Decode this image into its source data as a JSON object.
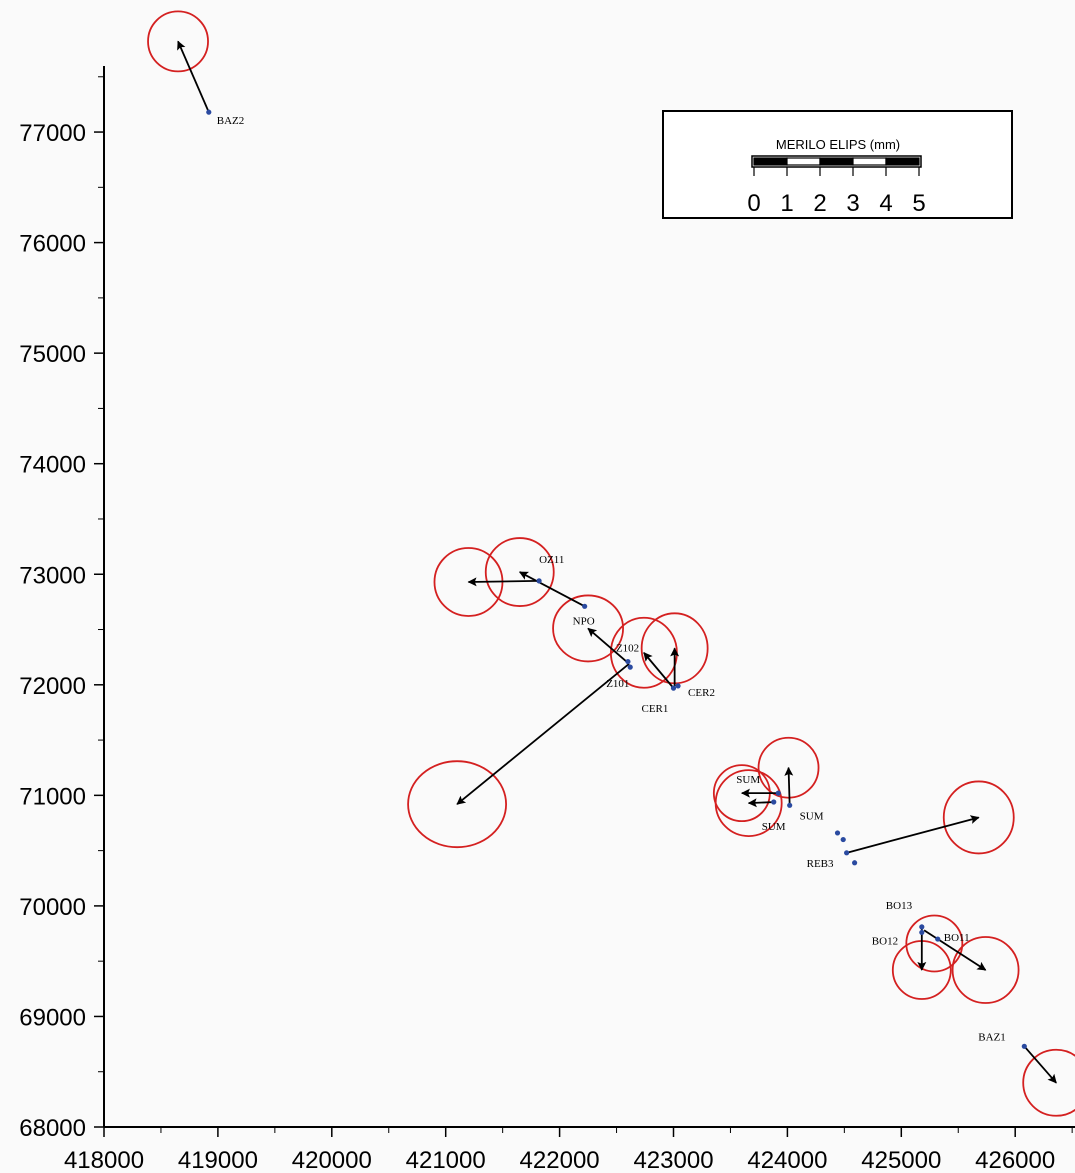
{
  "map": {
    "axes": {
      "x_ticks": [
        418000,
        419000,
        420000,
        421000,
        422000,
        423000,
        424000,
        425000,
        426000
      ],
      "y_ticks": [
        68000,
        69000,
        70000,
        71000,
        72000,
        73000,
        74000,
        75000,
        76000,
        77000
      ],
      "x_range": [
        418000,
        426600
      ],
      "y_range": [
        68000,
        77700
      ]
    },
    "legend": {
      "title": "MERILO ELIPS (mm)",
      "scale_labels": [
        "0",
        "1",
        "2",
        "3",
        "4",
        "5"
      ]
    },
    "colors": {
      "ellipse": "#d42020",
      "point": "#2a4aa0",
      "arrow": "#000000",
      "background": "#fafafa"
    },
    "points": [
      {
        "label": "BAZ2",
        "x": 418920,
        "y": 77180,
        "label_dx": 8,
        "label_dy": 12
      },
      {
        "label": "OZ11",
        "x": 421820,
        "y": 72940,
        "label_dx": 0,
        "label_dy": -18
      },
      {
        "label": "NPO",
        "x": 422220,
        "y": 72710,
        "label_dx": -12,
        "label_dy": 18
      },
      {
        "label": "Z102",
        "x": 422600,
        "y": 72210,
        "label_dx": -12,
        "label_dy": -10
      },
      {
        "label": "Z101",
        "x": 422620,
        "y": 72160,
        "label_dx": -24,
        "label_dy": 20
      },
      {
        "label": "CER1",
        "x": 423000,
        "y": 71970,
        "label_dx": -32,
        "label_dy": 24
      },
      {
        "label": "CER2",
        "x": 423040,
        "y": 71990,
        "label_dx": 10,
        "label_dy": 10
      },
      {
        "label": "SUM",
        "x": 423920,
        "y": 71020,
        "label_dx": -42,
        "label_dy": -10
      },
      {
        "label": "SUM",
        "x": 424020,
        "y": 70910,
        "label_dx": 10,
        "label_dy": 14
      },
      {
        "label": "SUM",
        "x": 423880,
        "y": 70940,
        "label_dx": -12,
        "label_dy": 28
      },
      {
        "label": "REB3",
        "x": 424520,
        "y": 70480,
        "label_dx": -40,
        "label_dy": 14
      },
      {
        "label": "",
        "x": 424440,
        "y": 70660,
        "label_dx": 0,
        "label_dy": 0
      },
      {
        "label": "",
        "x": 424490,
        "y": 70600,
        "label_dx": 0,
        "label_dy": 0
      },
      {
        "label": "",
        "x": 424590,
        "y": 70390,
        "label_dx": 0,
        "label_dy": 0
      },
      {
        "label": "BO13",
        "x": 425180,
        "y": 69810,
        "label_dx": -36,
        "label_dy": -18
      },
      {
        "label": "BO12",
        "x": 425180,
        "y": 69760,
        "label_dx": -50,
        "label_dy": 12
      },
      {
        "label": "BO11",
        "x": 425320,
        "y": 69700,
        "label_dx": 6,
        "label_dy": 2
      },
      {
        "label": "BAZ1",
        "x": 426080,
        "y": 68730,
        "label_dx": -46,
        "label_dy": -6
      }
    ],
    "vectors": [
      {
        "from": [
          418920,
          77180
        ],
        "to": [
          418650,
          77820
        ]
      },
      {
        "from": [
          421820,
          72940
        ],
        "to": [
          421200,
          72930
        ]
      },
      {
        "from": [
          422220,
          72710
        ],
        "to": [
          421650,
          73020
        ]
      },
      {
        "from": [
          422610,
          72190
        ],
        "to": [
          422250,
          72510
        ]
      },
      {
        "from": [
          422610,
          72190
        ],
        "to": [
          421100,
          70920
        ]
      },
      {
        "from": [
          423000,
          71970
        ],
        "to": [
          422740,
          72290
        ]
      },
      {
        "from": [
          423010,
          71990
        ],
        "to": [
          423010,
          72330
        ]
      },
      {
        "from": [
          423920,
          71020
        ],
        "to": [
          423600,
          71020
        ]
      },
      {
        "from": [
          424020,
          70910
        ],
        "to": [
          424010,
          71250
        ]
      },
      {
        "from": [
          423900,
          70940
        ],
        "to": [
          423660,
          70930
        ]
      },
      {
        "from": [
          424520,
          70480
        ],
        "to": [
          425680,
          70800
        ]
      },
      {
        "from": [
          425180,
          69800
        ],
        "to": [
          425180,
          69420
        ]
      },
      {
        "from": [
          425200,
          69780
        ],
        "to": [
          425740,
          69420
        ]
      },
      {
        "from": [
          426080,
          68730
        ],
        "to": [
          426360,
          68400
        ]
      }
    ],
    "ellipses": [
      {
        "cx": 418650,
        "cy": 77820,
        "rx": 30,
        "ry": 30
      },
      {
        "cx": 421200,
        "cy": 72930,
        "rx": 34,
        "ry": 34
      },
      {
        "cx": 421650,
        "cy": 73020,
        "rx": 34,
        "ry": 34
      },
      {
        "cx": 422250,
        "cy": 72510,
        "rx": 35,
        "ry": 33
      },
      {
        "cx": 421100,
        "cy": 70920,
        "rx": 49,
        "ry": 43
      },
      {
        "cx": 422740,
        "cy": 72290,
        "rx": 33,
        "ry": 35
      },
      {
        "cx": 423010,
        "cy": 72330,
        "rx": 33,
        "ry": 35
      },
      {
        "cx": 423600,
        "cy": 71020,
        "rx": 28,
        "ry": 28
      },
      {
        "cx": 424010,
        "cy": 71250,
        "rx": 30,
        "ry": 30
      },
      {
        "cx": 423660,
        "cy": 70930,
        "rx": 33,
        "ry": 33
      },
      {
        "cx": 425680,
        "cy": 70800,
        "rx": 35,
        "ry": 36
      },
      {
        "cx": 425290,
        "cy": 69660,
        "rx": 28,
        "ry": 28
      },
      {
        "cx": 425180,
        "cy": 69420,
        "rx": 29,
        "ry": 29
      },
      {
        "cx": 425740,
        "cy": 69420,
        "rx": 33,
        "ry": 33
      },
      {
        "cx": 426360,
        "cy": 68400,
        "rx": 33,
        "ry": 33
      }
    ]
  }
}
